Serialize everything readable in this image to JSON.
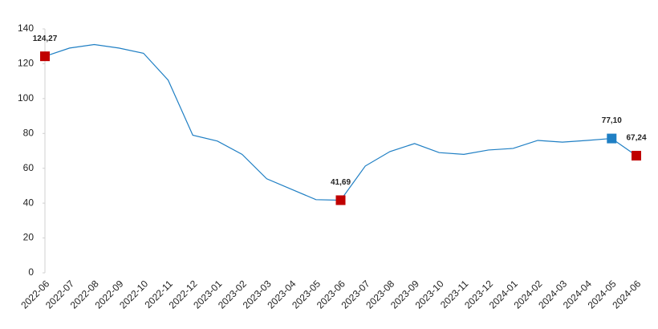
{
  "chart_data": {
    "type": "line",
    "categories": [
      "2022-06",
      "2022-07",
      "2022-08",
      "2022-09",
      "2022-10",
      "2022-11",
      "2022-12",
      "2023-01",
      "2023-02",
      "2023-03",
      "2023-04",
      "2023-05",
      "2023-06",
      "2023-07",
      "2023-08",
      "2023-09",
      "2023-10",
      "2023-11",
      "2023-12",
      "2024-01",
      "2024-02",
      "2024-03",
      "2024-04",
      "2024-05",
      "2024-06"
    ],
    "values": [
      124.27,
      129,
      131,
      129,
      126,
      110.6,
      79,
      75.6,
      68,
      54,
      48,
      42,
      41.69,
      61.3,
      69.6,
      74.2,
      69,
      68,
      70.5,
      71.4,
      76,
      75,
      76,
      77.1,
      67.24
    ],
    "value_labels": [
      "124,27",
      null,
      null,
      null,
      null,
      null,
      null,
      null,
      null,
      null,
      null,
      null,
      "41,69",
      null,
      null,
      null,
      null,
      null,
      null,
      null,
      null,
      null,
      null,
      "77,10",
      "67,24"
    ],
    "marker_colors": [
      "#c00000",
      null,
      null,
      null,
      null,
      null,
      null,
      null,
      null,
      null,
      null,
      null,
      "#c00000",
      null,
      null,
      null,
      null,
      null,
      null,
      null,
      null,
      null,
      null,
      "#1f7fc4",
      "#c00000"
    ],
    "color": "#1f7fc4",
    "ylim": [
      0,
      140
    ],
    "yticks": [
      0,
      20,
      40,
      60,
      80,
      100,
      120,
      140
    ]
  }
}
